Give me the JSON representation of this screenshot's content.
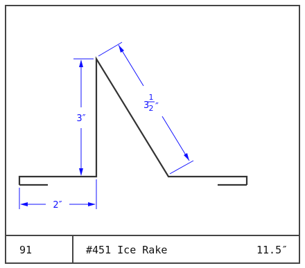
{
  "colors": {
    "frame": "#444444",
    "profile": "#333333",
    "dimension": "#1010ff",
    "text": "#111111",
    "background": "#ffffff"
  },
  "dimensions": {
    "height_label": "3″",
    "base_label": "2″",
    "slope_whole": "3",
    "slope_num": "1",
    "slope_den": "2",
    "slope_unit": "″"
  },
  "title_block": {
    "number": "91",
    "part_name": "#451 Ice Rake",
    "length": "11.5″"
  }
}
